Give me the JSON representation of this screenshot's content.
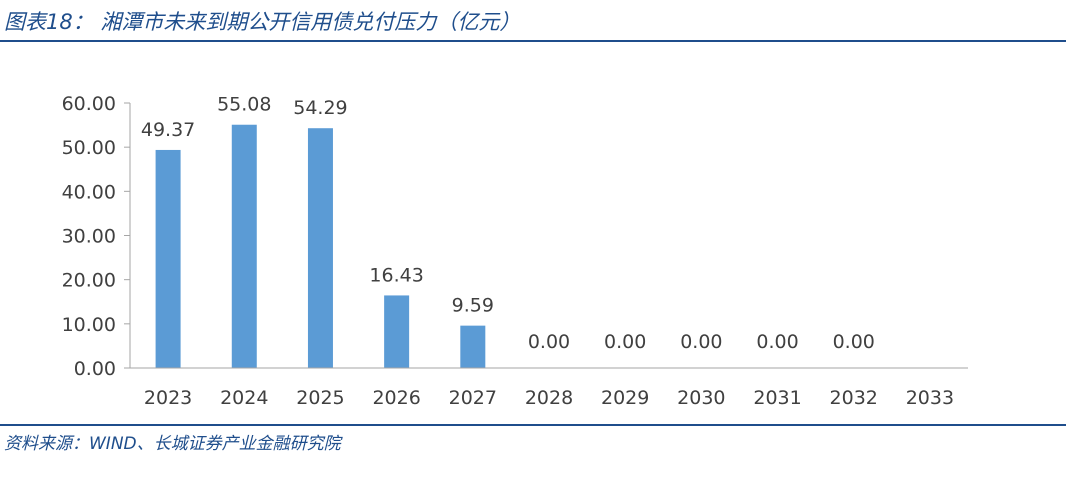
{
  "header": {
    "title": "图表18：  湘潭市未来到期公开信用债兑付压力（亿元）"
  },
  "footer": {
    "source": "资料来源：WIND、长城证券产业金融研究院"
  },
  "colors": {
    "bar": "#5b9bd5",
    "accent": "#1f4e8c",
    "axis": "#a6a6a6",
    "text": "#404040"
  },
  "chart_data": {
    "type": "bar",
    "title": "",
    "xlabel": "",
    "ylabel": "",
    "categories": [
      "2023",
      "2024",
      "2025",
      "2026",
      "2027",
      "2028",
      "2029",
      "2030",
      "2031",
      "2032",
      "2033"
    ],
    "values": [
      49.37,
      55.08,
      54.29,
      16.43,
      9.59,
      0.0,
      0.0,
      0.0,
      0.0,
      0.0,
      null
    ],
    "data_labels": [
      "49.37",
      "55.08",
      "54.29",
      "16.43",
      "9.59",
      "0.00",
      "0.00",
      "0.00",
      "0.00",
      "0.00",
      ""
    ],
    "y_ticks": [
      "0.00",
      "10.00",
      "20.00",
      "30.00",
      "40.00",
      "50.00",
      "60.00"
    ],
    "ylim": [
      0,
      60
    ],
    "grid": false,
    "legend": "none"
  }
}
